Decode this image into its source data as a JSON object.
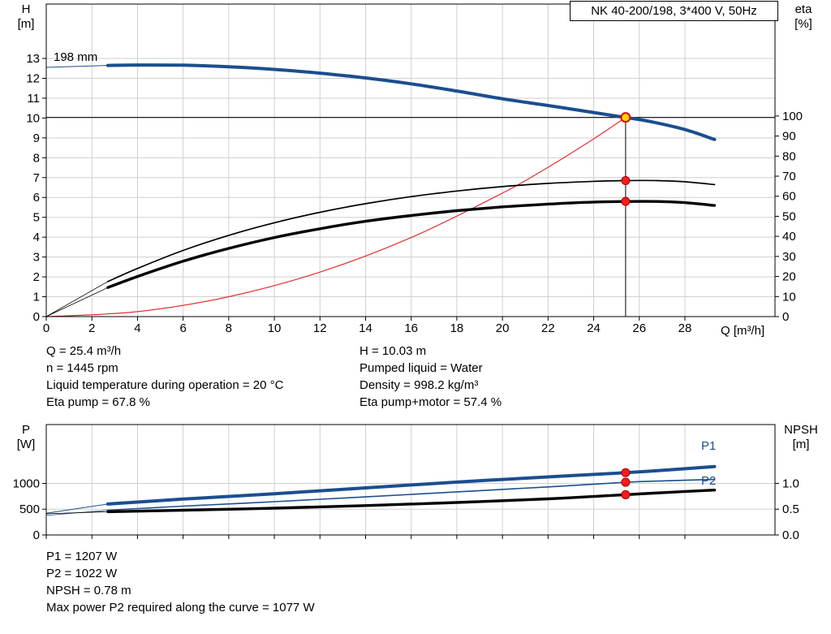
{
  "title_box": "NK 40-200/198, 3*400 V, 50Hz",
  "labels": {
    "h_axis": [
      "H",
      "[m]"
    ],
    "eta_axis": [
      "eta",
      "[%]"
    ],
    "q_axis": "Q [m³/h]",
    "p_axis": [
      "P",
      "[W]"
    ],
    "npsh_axis": [
      "NPSH",
      "[m]"
    ],
    "curve_label": "198 mm",
    "p1_curve": "P1",
    "p2_curve": "P2"
  },
  "operating_point": {
    "left": [
      "Q = 25.4 m³/h",
      "n = 1445 rpm",
      "Liquid temperature during operation = 20 °C",
      "Eta pump = 67.8 %"
    ],
    "right": [
      "H = 10.03 m",
      "Pumped liquid = Water",
      "Density = 998.2 kg/m³",
      "Eta pump+motor = 57.4 %"
    ]
  },
  "results": [
    "P1 = 1207 W",
    "P2 = 1022 W",
    "NPSH = 0.78 m",
    "Max power P2 required along the curve = 1077 W"
  ],
  "colors": {
    "curve_blue": "#1b4e8f",
    "curve_red": "#e23030",
    "curve_black": "#000000",
    "grid": "#cfcfcf",
    "marker_red": "#ff1a1a",
    "marker_red_stroke": "#a00000",
    "marker_yellow": "#ffd400"
  },
  "chart_data": [
    {
      "type": "line",
      "name": "head-efficiency-chart",
      "title": "NK 40-200/198, 3*400 V, 50Hz",
      "x_axis": {
        "label": "Q [m³/h]",
        "min": 0,
        "max": 31.95,
        "ticks": [
          0,
          2,
          4,
          6,
          8,
          10,
          12,
          14,
          16,
          18,
          20,
          22,
          24,
          26,
          28
        ]
      },
      "y_left": {
        "label": "H [m]",
        "min": 0,
        "max": 15.74,
        "ticks": [
          0,
          1,
          2,
          3,
          4,
          5,
          6,
          7,
          8,
          9,
          10,
          11,
          12,
          13
        ]
      },
      "y_right": {
        "label": "eta [%]",
        "min": 0,
        "max": 155.8,
        "ticks": [
          0,
          10,
          20,
          30,
          40,
          50,
          60,
          70,
          80,
          90,
          100
        ]
      },
      "duty_lines": {
        "vertical_q": 25.4,
        "horizontal_h": 10.03
      },
      "series": [
        {
          "name": "head-curve-lead",
          "axis": "left",
          "color": "#1b4e8f",
          "width": 1,
          "points": [
            [
              0,
              12.55
            ],
            [
              2.7,
              12.65
            ]
          ]
        },
        {
          "name": "system-curve",
          "axis": "left",
          "color": "#e23030",
          "width": 1.2,
          "points": [
            [
              0,
              0
            ],
            [
              4,
              0.25
            ],
            [
              8,
              1.0
            ],
            [
              12,
              2.24
            ],
            [
              16,
              3.98
            ],
            [
              20,
              6.22
            ],
            [
              22,
              7.52
            ],
            [
              24,
              8.95
            ],
            [
              25.4,
              10.03
            ]
          ]
        },
        {
          "name": "eta-pump-lead",
          "axis": "right",
          "color": "#000000",
          "width": 0.8,
          "points": [
            [
              0,
              0
            ],
            [
              2.7,
              17.5
            ]
          ]
        },
        {
          "name": "eta-pump-curve",
          "axis": "right",
          "color": "#000000",
          "width": 1.7,
          "points": [
            [
              2.7,
              17.5
            ],
            [
              4,
              24
            ],
            [
              6,
              33
            ],
            [
              8,
              40.5
            ],
            [
              10,
              46.8
            ],
            [
              12,
              52
            ],
            [
              14,
              56.3
            ],
            [
              16,
              59.8
            ],
            [
              18,
              62.6
            ],
            [
              20,
              64.8
            ],
            [
              22,
              66.4
            ],
            [
              24,
              67.4
            ],
            [
              25.4,
              67.8
            ],
            [
              26.8,
              67.8
            ],
            [
              28,
              67.2
            ],
            [
              29.3,
              65.8
            ]
          ]
        },
        {
          "name": "eta-pump-motor-lead",
          "axis": "right",
          "color": "#000000",
          "width": 0.8,
          "points": [
            [
              0,
              0
            ],
            [
              2.7,
              14.5
            ]
          ]
        },
        {
          "name": "eta-pump-motor-curve",
          "axis": "right",
          "color": "#000000",
          "width": 3.4,
          "points": [
            [
              2.7,
              14.5
            ],
            [
              4,
              20
            ],
            [
              6,
              27.6
            ],
            [
              8,
              34
            ],
            [
              10,
              39.4
            ],
            [
              12,
              43.8
            ],
            [
              14,
              47.5
            ],
            [
              16,
              50.4
            ],
            [
              18,
              52.8
            ],
            [
              20,
              54.7
            ],
            [
              22,
              56.1
            ],
            [
              24,
              57.1
            ],
            [
              25.4,
              57.4
            ],
            [
              26.8,
              57.4
            ],
            [
              28,
              56.8
            ],
            [
              29.3,
              55.4
            ]
          ]
        },
        {
          "name": "head-curve-198mm",
          "axis": "left",
          "color": "#1b4e8f",
          "width": 4,
          "points": [
            [
              2.7,
              12.65
            ],
            [
              4,
              12.67
            ],
            [
              6,
              12.66
            ],
            [
              8,
              12.58
            ],
            [
              10,
              12.45
            ],
            [
              12,
              12.26
            ],
            [
              14,
              12.02
            ],
            [
              16,
              11.72
            ],
            [
              18,
              11.36
            ],
            [
              20,
              10.97
            ],
            [
              22,
              10.63
            ],
            [
              24,
              10.28
            ],
            [
              25.4,
              10.03
            ],
            [
              26.5,
              9.82
            ],
            [
              28,
              9.42
            ],
            [
              29.3,
              8.92
            ]
          ]
        }
      ],
      "markers": [
        {
          "name": "duty-point-marker",
          "axis": "left",
          "q": 25.4,
          "value": 10.03,
          "fill": "#ffd400",
          "stroke": "#e00000",
          "r": 5.5,
          "stroke_width": 2
        },
        {
          "name": "eta-pump-marker",
          "axis": "right",
          "q": 25.4,
          "value": 67.8,
          "fill": "#ff1a1a",
          "stroke": "#a00000",
          "r": 5,
          "stroke_width": 1
        },
        {
          "name": "eta-pump-motor-marker",
          "axis": "right",
          "q": 25.4,
          "value": 57.4,
          "fill": "#ff1a1a",
          "stroke": "#a00000",
          "r": 5,
          "stroke_width": 1
        }
      ],
      "duty_point": {
        "q_m3h": 25.4,
        "h_m": 10.03,
        "eta_pump_pct": 67.8,
        "eta_pump_motor_pct": 57.4,
        "impeller": "198 mm",
        "speed_rpm": 1445
      }
    },
    {
      "type": "line",
      "name": "power-npsh-chart",
      "x_axis": {
        "label": "",
        "min": 0,
        "max": 31.95,
        "ticks": [
          0,
          2,
          4,
          6,
          8,
          10,
          12,
          14,
          16,
          18,
          20,
          22,
          24,
          26,
          28
        ],
        "show_labels": false
      },
      "y_left": {
        "label": "P [W]",
        "min": 0,
        "max": 2140,
        "ticks": [
          0,
          500,
          1000
        ],
        "tick_labels": [
          "0",
          "500",
          "1000"
        ]
      },
      "y_right": {
        "label": "NPSH [m]",
        "min": 0,
        "max": 2.14,
        "ticks": [
          0,
          0.5,
          1
        ],
        "tick_labels": [
          "0.0",
          "0.5",
          "1.0"
        ]
      },
      "series": [
        {
          "name": "p1-lead",
          "axis": "left",
          "color": "#1b4e8f",
          "width": 1,
          "points": [
            [
              0,
              420
            ],
            [
              2.7,
              600
            ]
          ]
        },
        {
          "name": "p2-lead",
          "axis": "left",
          "color": "#1b4e8f",
          "width": 0.8,
          "points": [
            [
              0,
              380
            ],
            [
              2.7,
              480
            ]
          ]
        },
        {
          "name": "p2-curve",
          "axis": "left",
          "color": "#1b4e8f",
          "width": 1.6,
          "points": [
            [
              2.7,
              480
            ],
            [
              6,
              558
            ],
            [
              10,
              645
            ],
            [
              14,
              738
            ],
            [
              18,
              835
            ],
            [
              22,
              932
            ],
            [
              25.4,
              1022
            ],
            [
              27,
              1048
            ],
            [
              29.3,
              1077
            ]
          ]
        },
        {
          "name": "npsh-lead",
          "axis": "right",
          "color": "#000000",
          "width": 0.8,
          "points": [
            [
              0,
              0.41
            ],
            [
              2.7,
              0.45
            ]
          ]
        },
        {
          "name": "npsh-curve",
          "axis": "right",
          "color": "#000000",
          "width": 3.4,
          "points": [
            [
              2.7,
              0.45
            ],
            [
              6,
              0.48
            ],
            [
              10,
              0.52
            ],
            [
              14,
              0.57
            ],
            [
              18,
              0.63
            ],
            [
              22,
              0.7
            ],
            [
              25.4,
              0.78
            ],
            [
              27,
              0.82
            ],
            [
              29.3,
              0.87
            ]
          ]
        },
        {
          "name": "p1-curve",
          "axis": "left",
          "color": "#1b4e8f",
          "width": 4,
          "points": [
            [
              2.7,
              600
            ],
            [
              6,
              695
            ],
            [
              10,
              800
            ],
            [
              14,
              912
            ],
            [
              18,
              1025
            ],
            [
              22,
              1125
            ],
            [
              25.4,
              1207
            ],
            [
              27,
              1252
            ],
            [
              29.3,
              1325
            ]
          ]
        }
      ],
      "markers": [
        {
          "name": "p1-marker",
          "axis": "left",
          "q": 25.4,
          "value": 1207,
          "fill": "#ff1a1a",
          "stroke": "#a00000",
          "r": 5,
          "stroke_width": 1
        },
        {
          "name": "p2-marker",
          "axis": "left",
          "q": 25.4,
          "value": 1022,
          "fill": "#ff1a1a",
          "stroke": "#a00000",
          "r": 5,
          "stroke_width": 1
        },
        {
          "name": "npsh-marker",
          "axis": "right",
          "q": 25.4,
          "value": 0.78,
          "fill": "#ff1a1a",
          "stroke": "#a00000",
          "r": 5,
          "stroke_width": 1
        }
      ],
      "duty_point": {
        "p1_w": 1207,
        "p2_w": 1022,
        "npsh_m": 0.78,
        "max_p2_along_curve_w": 1077
      }
    }
  ]
}
